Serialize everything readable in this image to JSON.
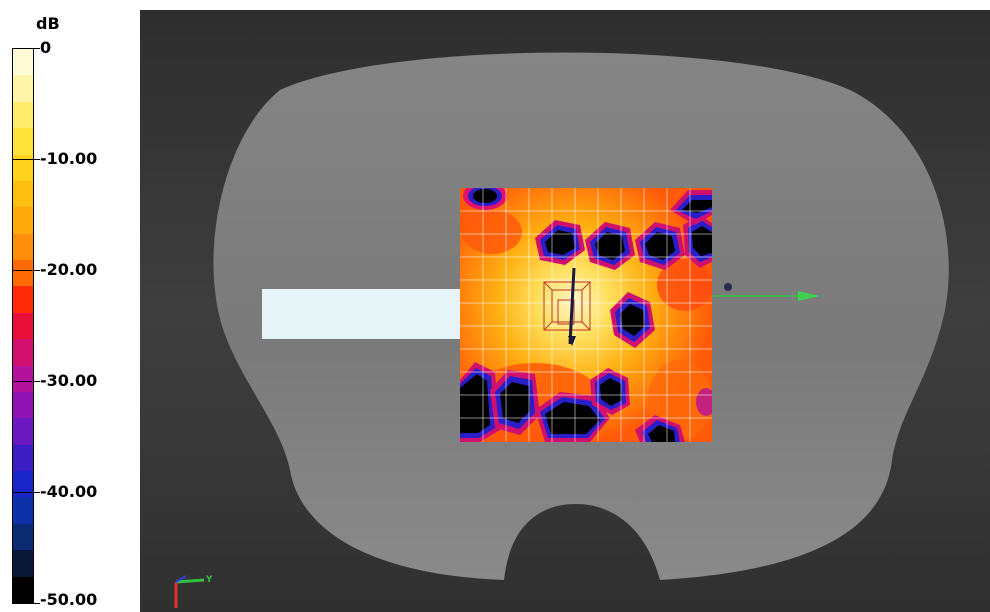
{
  "legend": {
    "unit": "dB",
    "ticks": [
      "0",
      "-10.00",
      "-20.00",
      "-30.00",
      "-40.00",
      "-50.00"
    ],
    "bands": [
      "#fffbd6",
      "#fff4a8",
      "#ffec6a",
      "#ffe23a",
      "#ffd21f",
      "#ffbf12",
      "#ffa80c",
      "#ff8e0a",
      "#ff6a06",
      "#ff2a08",
      "#e8103a",
      "#d2106e",
      "#b4129a",
      "#8e12b4",
      "#6a18c0",
      "#3a1ec4",
      "#1a26c8",
      "#0e30a8",
      "#0c2a70",
      "#0a1838",
      "#000000"
    ]
  },
  "viewport": {
    "axis_label_y": "Y",
    "background": "#3a3a3a",
    "phantom_color": "#7f7f7f"
  }
}
